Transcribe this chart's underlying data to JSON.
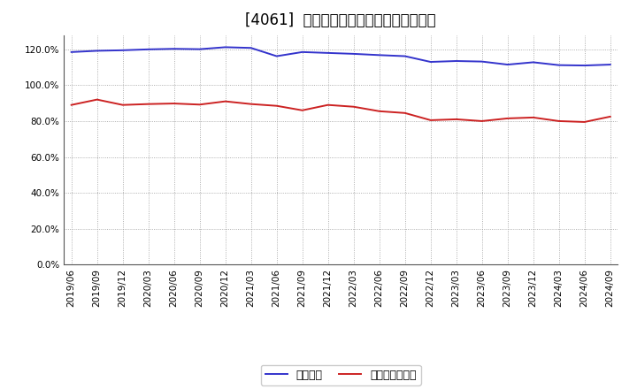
{
  "title": "[4061]  固定比率、固定長期適合率の推移",
  "x_labels": [
    "2019/06",
    "2019/09",
    "2019/12",
    "2020/03",
    "2020/06",
    "2020/09",
    "2020/12",
    "2021/03",
    "2021/06",
    "2021/09",
    "2021/12",
    "2022/03",
    "2022/06",
    "2022/09",
    "2022/12",
    "2023/03",
    "2023/06",
    "2023/09",
    "2023/12",
    "2024/03",
    "2024/06",
    "2024/09"
  ],
  "fixed_ratio": [
    118.5,
    119.2,
    119.5,
    120.0,
    120.3,
    120.1,
    121.2,
    120.8,
    116.2,
    118.5,
    118.0,
    117.5,
    116.8,
    116.2,
    113.0,
    113.5,
    113.2,
    111.5,
    112.8,
    111.2,
    111.0,
    111.5
  ],
  "fixed_long_ratio": [
    89.0,
    92.0,
    89.0,
    89.5,
    89.8,
    89.2,
    91.0,
    89.5,
    88.5,
    86.0,
    89.0,
    88.0,
    85.5,
    84.5,
    80.5,
    81.0,
    80.0,
    81.5,
    82.0,
    80.0,
    79.5,
    82.5
  ],
  "line1_color": "#3333cc",
  "line2_color": "#cc2222",
  "line1_label": "固定比率",
  "line2_label": "固定長期適合率",
  "ylim": [
    0,
    128
  ],
  "yticks": [
    0,
    20,
    40,
    60,
    80,
    100,
    120
  ],
  "bg_color": "#ffffff",
  "plot_bg_color": "#ffffff",
  "grid_color": "#999999",
  "title_fontsize": 12,
  "axis_fontsize": 7.5,
  "legend_fontsize": 9
}
